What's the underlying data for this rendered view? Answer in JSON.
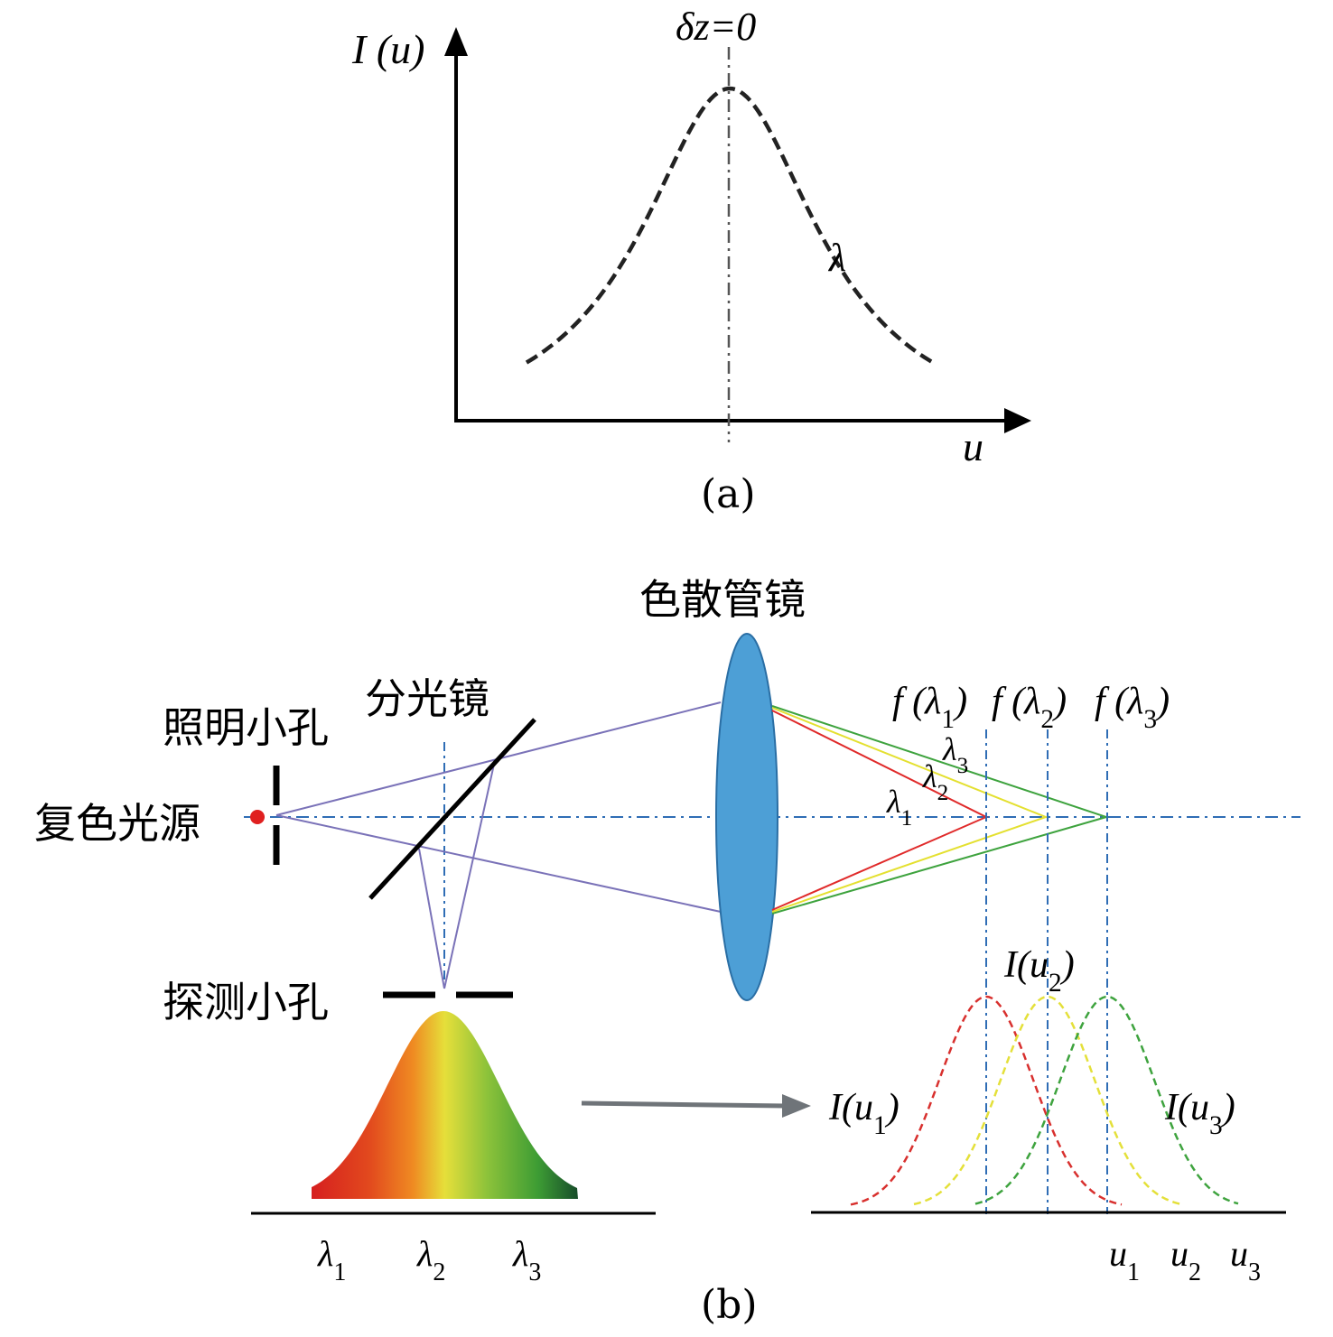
{
  "panel_a": {
    "y_axis_label": "I (u)",
    "x_axis_label": "u",
    "center_label": "δz=0",
    "curve_label": "λ",
    "caption": "(a)"
  },
  "panel_b": {
    "source_label": "复色光源",
    "pinhole_label": "照明小孔",
    "splitter_label": "分光镜",
    "lens_label": "色散管镜",
    "detector_label": "探测小孔",
    "focal_labels": [
      "f (λ1)",
      "f (λ2)",
      "f (λ3)"
    ],
    "ray_labels": [
      "λ1",
      "λ2",
      "λ3"
    ],
    "spectrum_labels": [
      "λ1",
      "λ2",
      "λ3"
    ],
    "response_labels": [
      "I(u1)",
      "I(u2)",
      "I(u3)"
    ],
    "u_labels": [
      "u1",
      "u2",
      "u3"
    ],
    "caption": "(b)",
    "colors": {
      "ray": "#7a72b8",
      "axis": "#2f6db5",
      "lens": "#4d9fd6",
      "lambda1": "#e02a2a",
      "lambda2": "#e4e030",
      "lambda3": "#3ea33e",
      "source": "#e02020"
    }
  }
}
